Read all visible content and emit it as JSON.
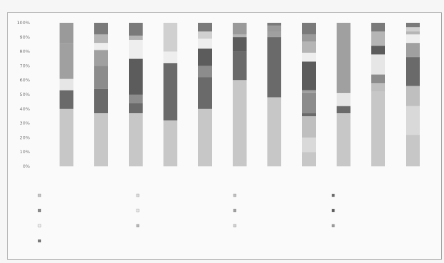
{
  "chart_data": {
    "type": "bar",
    "stacked": true,
    "percent": true,
    "title": "",
    "xlabel": "",
    "ylabel": "",
    "ylim": [
      0,
      100
    ],
    "yticks": [
      "0%",
      "10%",
      "20%",
      "30%",
      "40%",
      "50%",
      "60%",
      "70%",
      "80%",
      "90%",
      "100%"
    ],
    "grid": false,
    "legend_position": "bottom",
    "categories": [
      "",
      "",
      "",
      "",
      "",
      "",
      "",
      "",
      "",
      "",
      ""
    ],
    "series": [
      {
        "name": "",
        "color": "#c7c7c7",
        "values": [
          40,
          37,
          37,
          32,
          40,
          60,
          48,
          10,
          37,
          52,
          22
        ]
      },
      {
        "name": "",
        "color": "#d9d9d9",
        "values": [
          0,
          0,
          0,
          0,
          0,
          0,
          0,
          10,
          0,
          0,
          20
        ]
      },
      {
        "name": "",
        "color": "#bfbfbf",
        "values": [
          0,
          0,
          0,
          0,
          0,
          0,
          0,
          15,
          0,
          6,
          14
        ]
      },
      {
        "name": "",
        "color": "#6a6a6a",
        "values": [
          13,
          17,
          7,
          40,
          22,
          20,
          42,
          2,
          5,
          0,
          20
        ]
      },
      {
        "name": "",
        "color": "#8c8c8c",
        "values": [
          0,
          16,
          6,
          0,
          8,
          0,
          0,
          14,
          0,
          6,
          0
        ]
      },
      {
        "name": "",
        "color": "#e6e6e6",
        "values": [
          8,
          0,
          0,
          0,
          0,
          0,
          0,
          0,
          9,
          14,
          0
        ]
      },
      {
        "name": "",
        "color": "#a0a0a0",
        "values": [
          25,
          11,
          0,
          0,
          0,
          0,
          4,
          2,
          49,
          0,
          10
        ]
      },
      {
        "name": "",
        "color": "#5c5c5c",
        "values": [
          0,
          0,
          25,
          0,
          12,
          10,
          0,
          20,
          0,
          6,
          0
        ]
      },
      {
        "name": "",
        "color": "#eeeeee",
        "values": [
          0,
          5,
          13,
          8,
          7,
          0,
          0,
          6,
          0,
          0,
          6
        ]
      },
      {
        "name": "",
        "color": "#b5b5b5",
        "values": [
          0,
          6,
          3,
          0,
          0,
          2,
          0,
          8,
          0,
          10,
          2
        ]
      },
      {
        "name": "",
        "color": "#d0d0d0",
        "values": [
          0,
          0,
          0,
          20,
          5,
          0,
          0,
          0,
          0,
          0,
          3
        ]
      },
      {
        "name": "",
        "color": "#9a9a9a",
        "values": [
          14,
          0,
          0,
          0,
          0,
          8,
          4,
          5,
          0,
          0,
          0
        ]
      },
      {
        "name": "",
        "color": "#7a7a7a",
        "values": [
          0,
          8,
          9,
          0,
          6,
          0,
          2,
          8,
          0,
          6,
          3
        ]
      }
    ]
  }
}
